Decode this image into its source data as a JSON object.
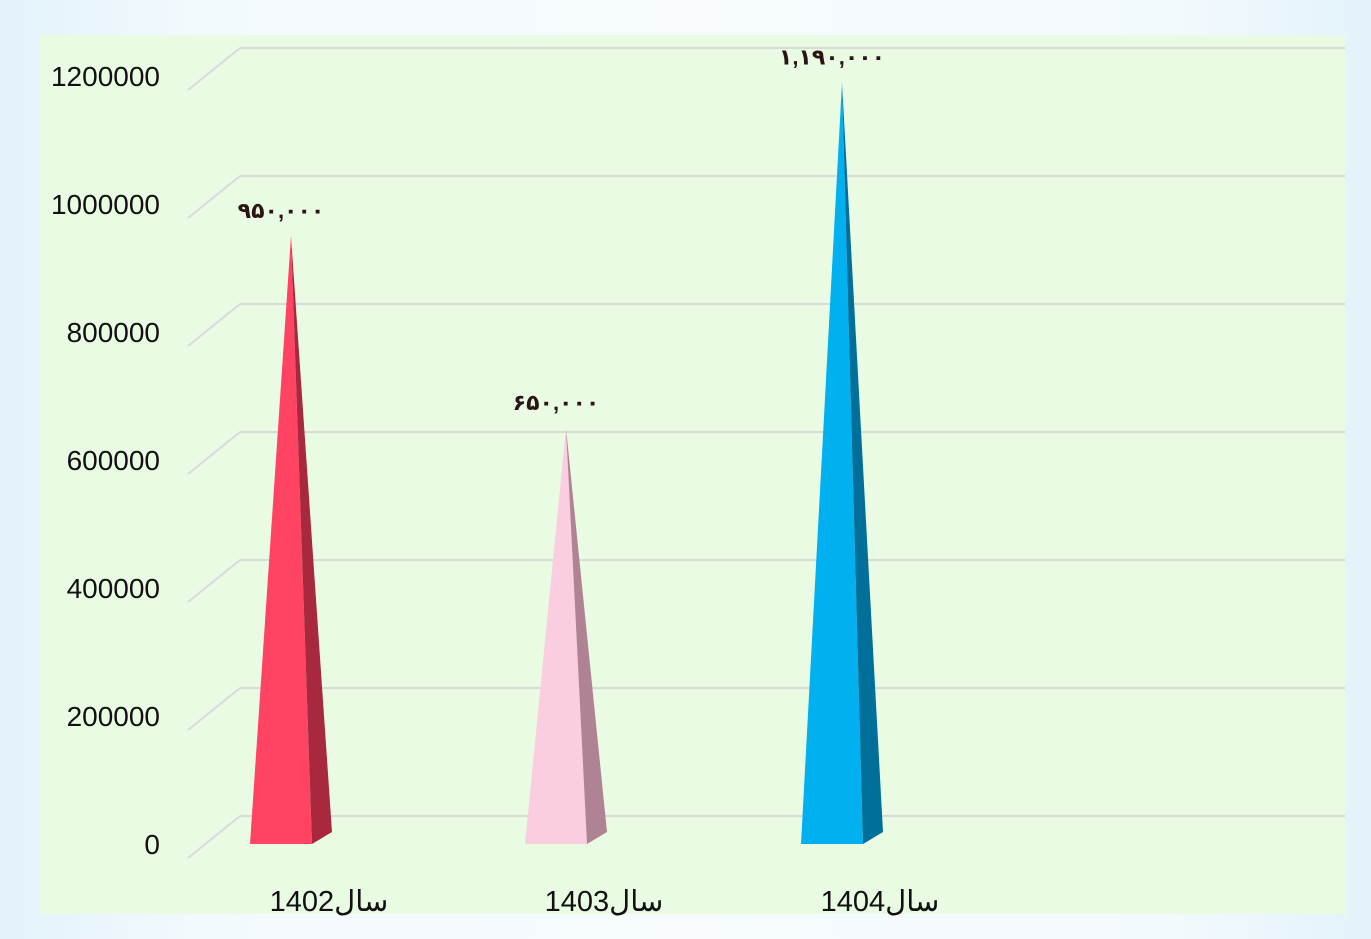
{
  "chart_data": {
    "type": "bar",
    "categories": [
      "1402سال",
      "1403سال",
      "1404سال"
    ],
    "values": [
      950000,
      650000,
      1190000
    ],
    "data_labels": [
      "۹۵۰,۰۰۰",
      "۶۵۰,۰۰۰",
      "۱,۱۹۰,۰۰۰"
    ],
    "y_ticks": [
      "0",
      "200000",
      "400000",
      "600000",
      "800000",
      "1000000",
      "1200000"
    ],
    "ylim": [
      0,
      1200000
    ],
    "grid": true,
    "bar_style": "3d-pyramid",
    "colors": [
      "#ff4463",
      "#fbcde0",
      "#00b0ef"
    ],
    "side_colors": [
      "#a8283d",
      "#b08394",
      "#006f99"
    ],
    "plot_background": "#e9fbe3",
    "page_background": "#eaf6fb"
  }
}
